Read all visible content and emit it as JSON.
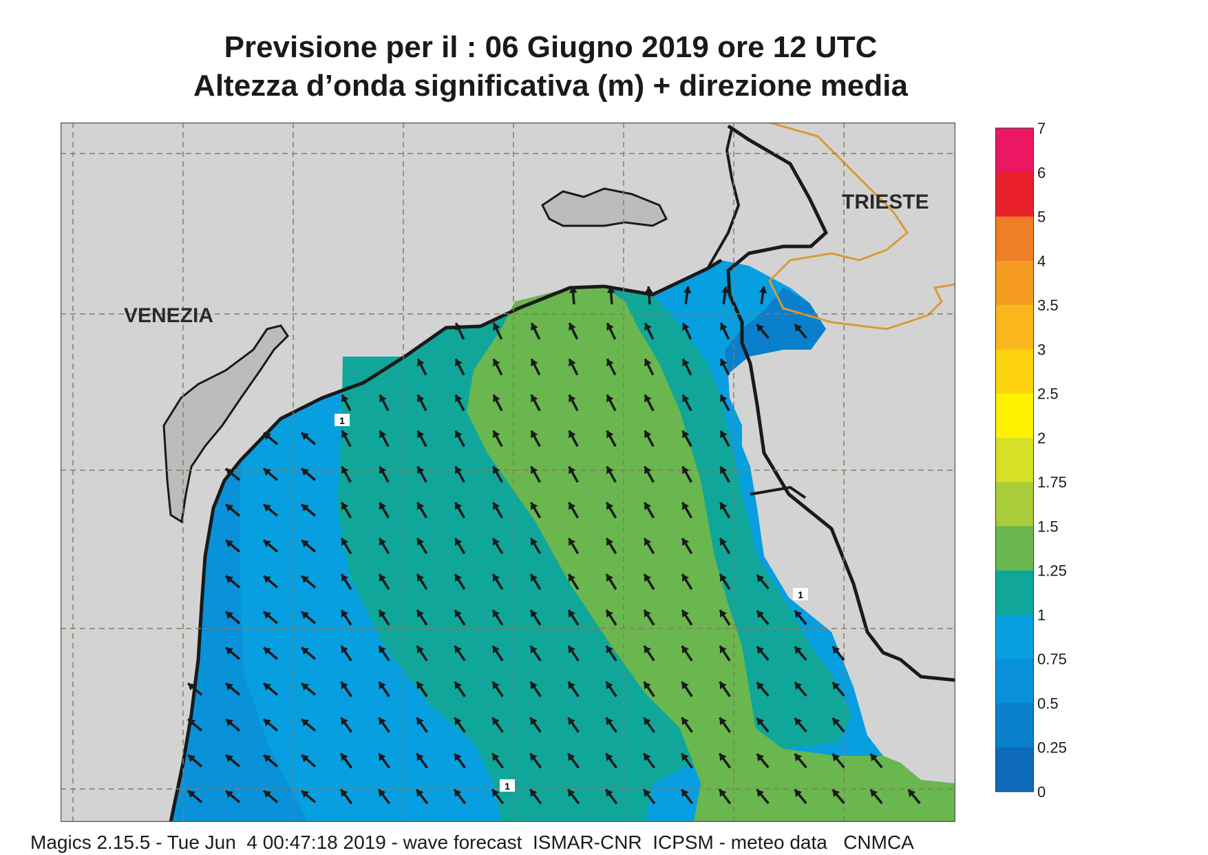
{
  "title_line1": "Previsione per il  :  06   Giugno  2019   ore 12 UTC",
  "title_line2": "Altezza d’onda significativa (m) + direzione media",
  "labels": {
    "venezia": "VENEZIA",
    "trieste": "TRIESTE"
  },
  "contour_labels": [
    "1",
    "1",
    "1"
  ],
  "footer": "Magics 2.15.5 - Tue Jun  4 00:47:18 2019 - wave forecast  ISMAR-CNR  ICPSM - meteo data   CNMCA",
  "legend": {
    "ticks": [
      "7",
      "6",
      "5",
      "4",
      "3.5",
      "3",
      "2.5",
      "2",
      "1.75",
      "1.5",
      "1.25",
      "1",
      "0.75",
      "0.5",
      "0.25",
      "0"
    ],
    "colors": [
      "#ec1763",
      "#e8202a",
      "#f07e26",
      "#f59d22",
      "#f9b71d",
      "#fcd30c",
      "#fff200",
      "#d6e026",
      "#a8cc3a",
      "#69b74e",
      "#10a79a",
      "#089fe0",
      "#0991d9",
      "#0a7fcc",
      "#0c6ab8"
    ]
  },
  "colors": {
    "land": "#d3d3d3",
    "coast_shade": "#bcbcbc",
    "grid": "#8c7a60",
    "border": "#d99a35",
    "arrow": "#1a1a1a"
  }
}
